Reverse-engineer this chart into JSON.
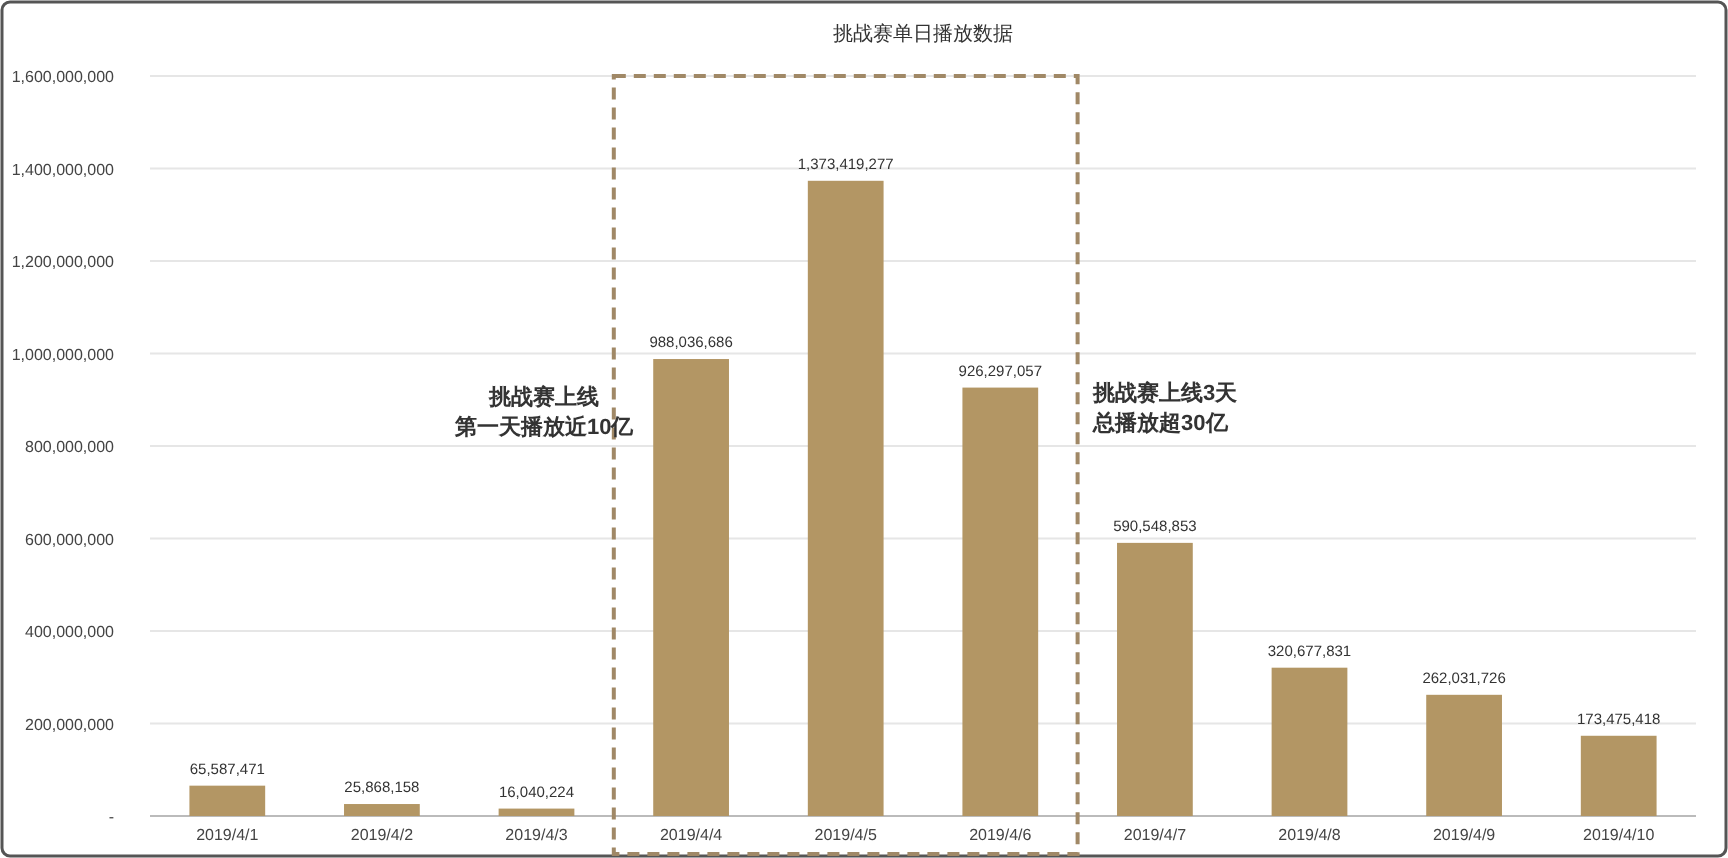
{
  "chart_data": {
    "type": "bar",
    "title": "挑战赛单日播放数据",
    "categories": [
      "2019/4/1",
      "2019/4/2",
      "2019/4/3",
      "2019/4/4",
      "2019/4/5",
      "2019/4/6",
      "2019/4/7",
      "2019/4/8",
      "2019/4/9",
      "2019/4/10"
    ],
    "values": [
      65587471,
      25868158,
      16040224,
      988036686,
      1373419277,
      926297057,
      590548853,
      320677831,
      262031726,
      173475418
    ],
    "color": "#b39664",
    "value_labels": [
      "65,587,471",
      "25,868,158",
      "16,040,224",
      "988,036,686",
      "1,373,419,277",
      "926,297,057",
      "590,548,853",
      "320,677,831",
      "262,031,726",
      "173,475,418"
    ],
    "ylim": [
      0,
      1600000000
    ],
    "yticks": [
      {
        "value": 0,
        "label": "-"
      },
      {
        "value": 200000000,
        "label": "200,000,000"
      },
      {
        "value": 400000000,
        "label": "400,000,000"
      },
      {
        "value": 600000000,
        "label": "600,000,000"
      },
      {
        "value": 800000000,
        "label": "800,000,000"
      },
      {
        "value": 1000000000,
        "label": "1,000,000,000"
      },
      {
        "value": 1200000000,
        "label": "1,200,000,000"
      },
      {
        "value": 1400000000,
        "label": "1,400,000,000"
      },
      {
        "value": 1600000000,
        "label": "1,600,000,000"
      }
    ],
    "grid": "y",
    "annotations": [
      "挑战赛上线",
      "第一天播放近10亿",
      "挑战赛上线3天",
      "总播放超30亿"
    ]
  }
}
